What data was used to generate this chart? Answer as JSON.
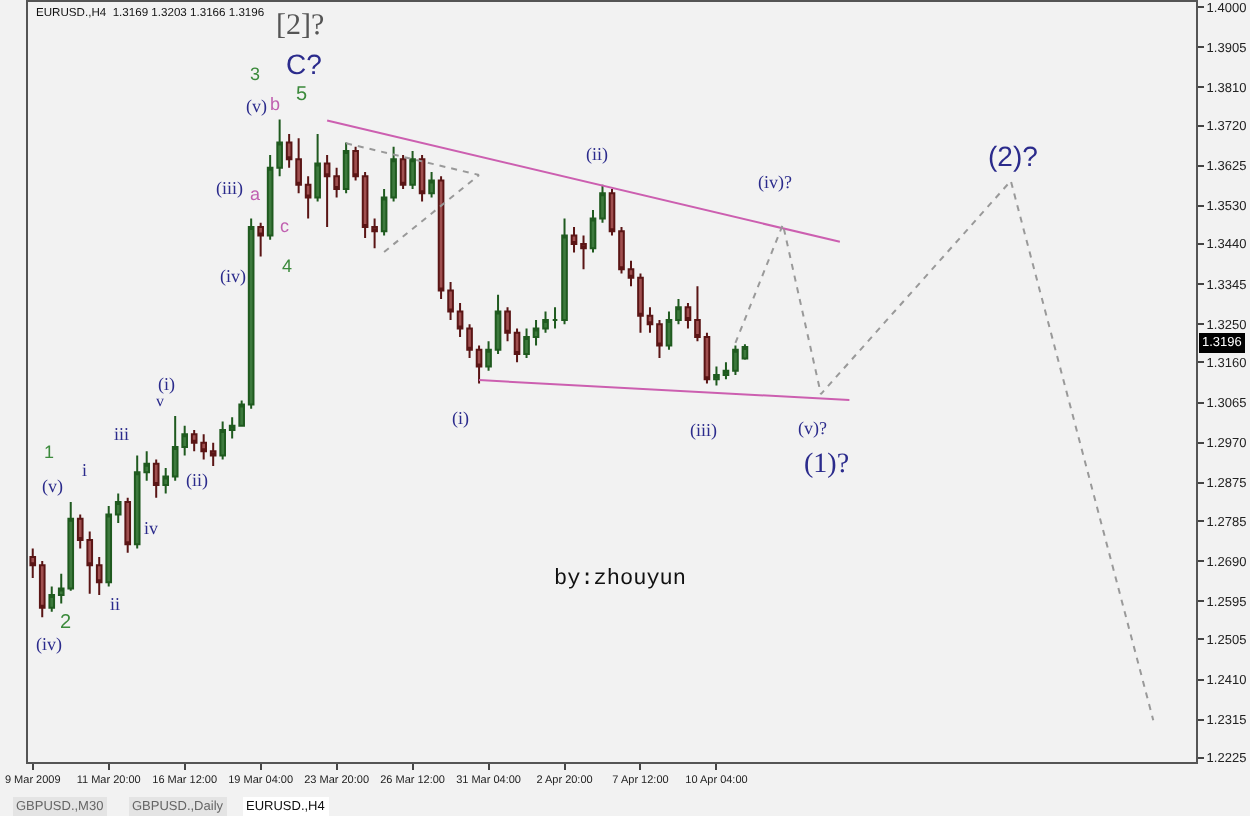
{
  "chart_data": {
    "type": "candlestick",
    "categories": [
      "9 Mar 2009",
      null,
      null,
      null,
      null,
      null,
      null,
      null,
      "11 Mar 20:00",
      null,
      null,
      null,
      null,
      null,
      null,
      null,
      "16 Mar 12:00",
      null,
      null,
      null,
      null,
      null,
      null,
      null,
      "19 Mar 04:00",
      null,
      null,
      null,
      null,
      null,
      null,
      null,
      "23 Mar 20:00",
      null,
      null,
      null,
      null,
      null,
      null,
      null,
      "26 Mar 12:00",
      null,
      null,
      null,
      null,
      null,
      null,
      null,
      "31 Mar 04:00",
      null,
      null,
      null,
      null,
      null,
      null,
      null,
      "2 Apr 20:00",
      null,
      null,
      null,
      null,
      null,
      null,
      null,
      "7 Apr 12:00",
      null,
      null,
      null,
      null,
      null,
      null,
      null,
      "10 Apr 04:00",
      null,
      null,
      null,
      null,
      null,
      null,
      null,
      null,
      null,
      null,
      null,
      null,
      null,
      null,
      null,
      null,
      null,
      null,
      null,
      null,
      null,
      null,
      null,
      null,
      null,
      null,
      null,
      null,
      null,
      null,
      null,
      null,
      null,
      null,
      null,
      null,
      null,
      null,
      null,
      null,
      null,
      null,
      null,
      null,
      null,
      null,
      null,
      null,
      null,
      null
    ],
    "ohlc": [
      [
        1.27,
        1.272,
        1.265,
        1.268
      ],
      [
        1.268,
        1.269,
        1.2557,
        1.258
      ],
      [
        1.258,
        1.263,
        1.257,
        1.261
      ],
      [
        1.261,
        1.266,
        1.259,
        1.2625
      ],
      [
        1.2625,
        1.283,
        1.262,
        1.279
      ],
      [
        1.279,
        1.28,
        1.272,
        1.274
      ],
      [
        1.274,
        1.276,
        1.2613,
        1.268
      ],
      [
        1.268,
        1.27,
        1.261,
        1.264
      ],
      [
        1.264,
        1.282,
        1.263,
        1.28
      ],
      [
        1.28,
        1.285,
        1.278,
        1.283
      ],
      [
        1.283,
        1.284,
        1.271,
        1.273
      ],
      [
        1.273,
        1.294,
        1.272,
        1.29
      ],
      [
        1.29,
        1.295,
        1.288,
        1.292
      ],
      [
        1.292,
        1.293,
        1.284,
        1.287
      ],
      [
        1.287,
        1.291,
        1.285,
        1.289
      ],
      [
        1.289,
        1.3033,
        1.288,
        1.296
      ],
      [
        1.296,
        1.301,
        1.294,
        1.299
      ],
      [
        1.299,
        1.3,
        1.295,
        1.297
      ],
      [
        1.297,
        1.299,
        1.293,
        1.295
      ],
      [
        1.295,
        1.297,
        1.2915,
        1.294
      ],
      [
        1.294,
        1.302,
        1.293,
        1.3
      ],
      [
        1.3,
        1.303,
        1.298,
        1.301
      ],
      [
        1.301,
        1.307,
        1.301,
        1.306
      ],
      [
        1.306,
        1.35,
        1.305,
        1.348
      ],
      [
        1.348,
        1.349,
        1.341,
        1.346
      ],
      [
        1.346,
        1.365,
        1.345,
        1.362
      ],
      [
        1.362,
        1.3734,
        1.36,
        1.368
      ],
      [
        1.368,
        1.37,
        1.362,
        1.364
      ],
      [
        1.364,
        1.369,
        1.356,
        1.358
      ],
      [
        1.358,
        1.36,
        1.35,
        1.355
      ],
      [
        1.355,
        1.37,
        1.354,
        1.363
      ],
      [
        1.363,
        1.365,
        1.348,
        1.36
      ],
      [
        1.36,
        1.362,
        1.355,
        1.357
      ],
      [
        1.357,
        1.368,
        1.356,
        1.366
      ],
      [
        1.366,
        1.367,
        1.359,
        1.36
      ],
      [
        1.36,
        1.361,
        1.3454,
        1.348
      ],
      [
        1.348,
        1.35,
        1.343,
        1.347
      ],
      [
        1.347,
        1.357,
        1.346,
        1.355
      ],
      [
        1.355,
        1.367,
        1.354,
        1.364
      ],
      [
        1.364,
        1.365,
        1.357,
        1.358
      ],
      [
        1.358,
        1.366,
        1.357,
        1.364
      ],
      [
        1.364,
        1.365,
        1.354,
        1.356
      ],
      [
        1.356,
        1.361,
        1.355,
        1.359
      ],
      [
        1.359,
        1.36,
        1.331,
        1.333
      ],
      [
        1.333,
        1.335,
        1.326,
        1.328
      ],
      [
        1.328,
        1.33,
        1.322,
        1.324
      ],
      [
        1.324,
        1.325,
        1.317,
        1.319
      ],
      [
        1.319,
        1.32,
        1.311,
        1.315
      ],
      [
        1.315,
        1.321,
        1.314,
        1.319
      ],
      [
        1.319,
        1.332,
        1.318,
        1.328
      ],
      [
        1.328,
        1.329,
        1.321,
        1.323
      ],
      [
        1.323,
        1.324,
        1.316,
        1.318
      ],
      [
        1.318,
        1.324,
        1.317,
        1.322
      ],
      [
        1.322,
        1.326,
        1.32,
        1.324
      ],
      [
        1.324,
        1.328,
        1.323,
        1.326
      ],
      [
        1.326,
        1.329,
        1.324,
        1.326
      ],
      [
        1.326,
        1.35,
        1.325,
        1.346
      ],
      [
        1.346,
        1.348,
        1.342,
        1.344
      ],
      [
        1.344,
        1.346,
        1.338,
        1.343
      ],
      [
        1.343,
        1.352,
        1.342,
        1.35
      ],
      [
        1.35,
        1.358,
        1.349,
        1.356
      ],
      [
        1.356,
        1.357,
        1.346,
        1.347
      ],
      [
        1.347,
        1.348,
        1.337,
        1.338
      ],
      [
        1.338,
        1.34,
        1.334,
        1.336
      ],
      [
        1.336,
        1.337,
        1.323,
        1.327
      ],
      [
        1.327,
        1.329,
        1.323,
        1.325
      ],
      [
        1.325,
        1.326,
        1.317,
        1.32
      ],
      [
        1.32,
        1.328,
        1.319,
        1.326
      ],
      [
        1.326,
        1.331,
        1.325,
        1.329
      ],
      [
        1.329,
        1.33,
        1.324,
        1.326
      ],
      [
        1.326,
        1.334,
        1.321,
        1.322
      ],
      [
        1.322,
        1.323,
        1.311,
        1.312
      ],
      [
        1.312,
        1.315,
        1.3105,
        1.313
      ],
      [
        1.313,
        1.316,
        1.312,
        1.314
      ],
      [
        1.314,
        1.32,
        1.313,
        1.319
      ],
      [
        1.3169,
        1.3203,
        1.3166,
        1.3196
      ],
      null,
      null,
      null,
      null,
      null,
      null,
      null,
      null,
      null,
      null,
      null,
      null,
      null,
      null,
      null,
      null,
      null,
      null,
      null,
      null,
      null,
      null,
      null,
      null,
      null,
      null,
      null,
      null,
      null,
      null,
      null,
      null,
      null,
      null,
      null,
      null,
      null,
      null,
      null,
      null,
      null,
      null,
      null,
      null,
      null,
      null,
      null
    ],
    "series": [
      {
        "type": "line",
        "color": "#cc5fb0",
        "line_style": "solid",
        "values": [
          null,
          null,
          null,
          null,
          null,
          null,
          null,
          null,
          null,
          null,
          null,
          null,
          null,
          null,
          null,
          null,
          null,
          null,
          null,
          null,
          null,
          null,
          null,
          null,
          null,
          null,
          null,
          null,
          null,
          null,
          null,
          1.3732,
          null,
          null,
          null,
          null,
          null,
          null,
          null,
          null,
          null,
          null,
          null,
          null,
          null,
          null,
          null,
          null,
          null,
          null,
          null,
          null,
          null,
          null,
          null,
          null,
          null,
          null,
          null,
          null,
          null,
          null,
          null,
          null,
          null,
          null,
          null,
          null,
          null,
          null,
          null,
          null,
          null,
          null,
          null,
          null,
          null,
          null,
          null,
          null,
          null,
          null,
          null,
          null,
          null,
          1.3445,
          null,
          null,
          null,
          null,
          null,
          null,
          null,
          null,
          null,
          null,
          null,
          null,
          null,
          null,
          null,
          null,
          null,
          null,
          null,
          null,
          null,
          null,
          null,
          null,
          null,
          null,
          null,
          null,
          null,
          null,
          null,
          null,
          null,
          null,
          null,
          null,
          null
        ]
      },
      {
        "type": "line",
        "color": "#cc5fb0",
        "line_style": "solid",
        "values": [
          null,
          null,
          null,
          null,
          null,
          null,
          null,
          null,
          null,
          null,
          null,
          null,
          null,
          null,
          null,
          null,
          null,
          null,
          null,
          null,
          null,
          null,
          null,
          null,
          null,
          null,
          null,
          null,
          null,
          null,
          null,
          null,
          null,
          null,
          null,
          null,
          null,
          null,
          null,
          null,
          null,
          null,
          null,
          null,
          null,
          null,
          null,
          1.3118,
          null,
          null,
          null,
          null,
          null,
          null,
          null,
          null,
          null,
          null,
          null,
          null,
          null,
          null,
          null,
          null,
          null,
          null,
          null,
          null,
          null,
          null,
          null,
          null,
          null,
          null,
          null,
          null,
          null,
          null,
          null,
          null,
          null,
          null,
          null,
          null,
          null,
          null,
          1.3071,
          null,
          null,
          null,
          null,
          null,
          null,
          null,
          null,
          null,
          null,
          null,
          null,
          null,
          null,
          null,
          null,
          null,
          null,
          null,
          null,
          null,
          null,
          null,
          null,
          null,
          null,
          null,
          null,
          null,
          null,
          null,
          null,
          null,
          null,
          null,
          null
        ]
      },
      {
        "type": "line",
        "color": "#999999",
        "line_style": "dotted",
        "values": [
          null,
          null,
          null,
          null,
          null,
          null,
          null,
          null,
          null,
          null,
          null,
          null,
          null,
          null,
          null,
          null,
          null,
          null,
          null,
          null,
          null,
          null,
          null,
          null,
          null,
          null,
          null,
          null,
          null,
          null,
          null,
          null,
          null,
          1.3678,
          null,
          null,
          null,
          null,
          null,
          null,
          null,
          null,
          null,
          null,
          null,
          null,
          null,
          1.3603,
          null,
          null,
          null,
          null,
          null,
          null,
          null,
          null,
          null,
          null,
          null,
          null,
          null,
          null,
          null,
          null,
          null,
          null,
          null,
          null,
          null,
          null,
          null,
          null,
          null,
          null,
          null,
          null,
          null,
          null,
          null,
          null,
          null,
          null,
          null,
          null,
          null,
          null,
          null,
          null,
          null,
          null,
          null,
          null,
          null,
          null,
          null,
          null,
          null,
          null,
          null,
          null,
          null,
          null,
          null,
          null,
          null,
          null,
          null,
          null,
          null,
          null,
          null,
          null,
          null,
          null,
          null,
          null,
          null,
          null,
          null,
          null,
          null,
          null,
          null
        ]
      },
      {
        "type": "line",
        "color": "#999999",
        "line_style": "dotted",
        "values": [
          null,
          null,
          null,
          null,
          null,
          null,
          null,
          null,
          null,
          null,
          null,
          null,
          null,
          null,
          null,
          null,
          null,
          null,
          null,
          null,
          null,
          null,
          null,
          null,
          null,
          null,
          null,
          null,
          null,
          null,
          null,
          null,
          null,
          null,
          null,
          null,
          null,
          1.3421,
          null,
          null,
          null,
          null,
          null,
          null,
          null,
          null,
          null,
          1.3603,
          null,
          null,
          null,
          null,
          null,
          null,
          null,
          null,
          null,
          null,
          null,
          null,
          null,
          null,
          null,
          null,
          null,
          null,
          null,
          null,
          null,
          null,
          null,
          null,
          null,
          null,
          null,
          null,
          null,
          null,
          null,
          null,
          null,
          null,
          null,
          null,
          null,
          null,
          null,
          null,
          null,
          null,
          null,
          null,
          null,
          null,
          null,
          null,
          null,
          null,
          null,
          null,
          null,
          null,
          null,
          null,
          null,
          null,
          null,
          null,
          null,
          null,
          null,
          null,
          null,
          null,
          null,
          null,
          null,
          null,
          null,
          null,
          null,
          null,
          null
        ]
      },
      {
        "type": "line",
        "color": "#999999",
        "line_style": "dotted",
        "values": [
          null,
          null,
          null,
          null,
          null,
          null,
          null,
          null,
          null,
          null,
          null,
          null,
          null,
          null,
          null,
          null,
          null,
          null,
          null,
          null,
          null,
          null,
          null,
          null,
          null,
          null,
          null,
          null,
          null,
          null,
          null,
          null,
          null,
          null,
          null,
          null,
          null,
          null,
          null,
          null,
          null,
          null,
          null,
          null,
          null,
          null,
          null,
          null,
          null,
          null,
          null,
          null,
          null,
          null,
          null,
          null,
          null,
          null,
          null,
          null,
          null,
          null,
          null,
          null,
          null,
          null,
          null,
          null,
          null,
          null,
          null,
          null,
          null,
          null,
          1.3206,
          null,
          null,
          null,
          null,
          1.3486,
          null,
          null,
          null,
          1.3085,
          null,
          null,
          null,
          null,
          null,
          null,
          null,
          null,
          null,
          null,
          null,
          null,
          null,
          null,
          null,
          null,
          null,
          null,
          null,
          1.3589,
          null,
          null,
          null,
          null,
          null,
          null,
          null,
          null,
          null,
          null,
          null,
          null,
          null,
          null,
          1.2314,
          null,
          null,
          null,
          null
        ]
      }
    ],
    "annotations": [
      "EURUSD.,H4  1.3169 1.3203 1.3166 1.3196",
      "by:zhouyun",
      "GBPUSD.,M30",
      "GBPUSD.,Daily",
      "EURUSD.,H4",
      "1.3196",
      "[2]?",
      "C?",
      "3",
      "5",
      "(v)",
      "b",
      "(iii)",
      "a",
      "c",
      "(iv)",
      "4",
      "(ii)",
      "(iv)?",
      "(2)?",
      "(i)",
      "(iii)",
      "(v)?",
      "(1)?",
      "(i)",
      "v",
      "1",
      "(v)",
      "i",
      "iii",
      "ii",
      "iv",
      "(ii)",
      "2",
      "(iv)"
    ],
    "ylim": [
      1.2215,
      1.4012
    ],
    "yticks": [
      {
        "value": 1.4,
        "label": "1.4000"
      },
      1.3905,
      {
        "value": 1.381,
        "label": "1.3810"
      },
      {
        "value": 1.372,
        "label": "1.3720"
      },
      1.3625,
      {
        "value": 1.353,
        "label": "1.3530"
      },
      {
        "value": 1.344,
        "label": "1.3440"
      },
      1.3345,
      {
        "value": 1.325,
        "label": "1.3250"
      },
      {
        "value": 1.316,
        "label": "1.3160"
      },
      1.3065,
      {
        "value": 1.297,
        "label": "1.2970"
      },
      1.2875,
      1.2785,
      {
        "value": 1.269,
        "label": "1.2690"
      },
      1.2595,
      1.2505,
      {
        "value": 1.241,
        "label": "1.2410"
      },
      1.2315,
      1.2225
    ],
    "grid": false
  }
}
